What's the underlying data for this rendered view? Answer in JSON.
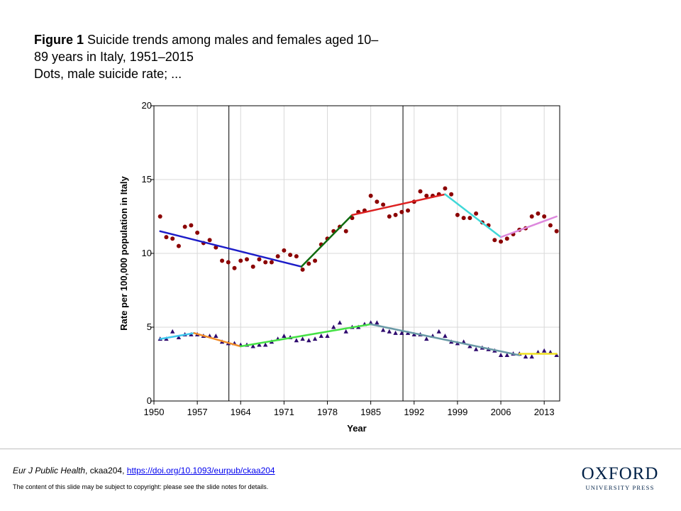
{
  "caption": {
    "label": "Figure 1",
    "line1": " Suicide trends among males and females aged 10–",
    "line2": "89 years in Italy, 1951–2015",
    "line3": "Dots, male suicide rate; ..."
  },
  "chart_data": {
    "type": "scatter",
    "xlabel": "Year",
    "ylabel": "Rate per 100,000 population in Italy",
    "xlim": [
      1950,
      2015.5
    ],
    "ylim": [
      0,
      20
    ],
    "x_ticks": [
      1950,
      1957,
      1964,
      1971,
      1978,
      1985,
      1992,
      1999,
      2006,
      2013
    ],
    "y_ticks": [
      0,
      5,
      10,
      15,
      20
    ],
    "grid": true,
    "vertical_lines": [
      1962.1,
      1990.2
    ],
    "series": [
      {
        "marker": "circle",
        "color": "#8b0000",
        "points": [
          [
            1951,
            12.5
          ],
          [
            1952,
            11.1
          ],
          [
            1953,
            11.0
          ],
          [
            1954,
            10.5
          ],
          [
            1955,
            11.8
          ],
          [
            1956,
            11.9
          ],
          [
            1957,
            11.4
          ],
          [
            1958,
            10.7
          ],
          [
            1959,
            10.9
          ],
          [
            1960,
            10.4
          ],
          [
            1961,
            9.5
          ],
          [
            1962,
            9.4
          ],
          [
            1963,
            9.0
          ],
          [
            1964,
            9.5
          ],
          [
            1965,
            9.6
          ],
          [
            1966,
            9.1
          ],
          [
            1967,
            9.6
          ],
          [
            1968,
            9.4
          ],
          [
            1969,
            9.4
          ],
          [
            1970,
            9.8
          ],
          [
            1971,
            10.2
          ],
          [
            1972,
            9.9
          ],
          [
            1973,
            9.8
          ],
          [
            1974,
            8.9
          ],
          [
            1975,
            9.3
          ],
          [
            1976,
            9.5
          ],
          [
            1977,
            10.6
          ],
          [
            1978,
            11.0
          ],
          [
            1979,
            11.5
          ],
          [
            1980,
            11.8
          ],
          [
            1981,
            11.5
          ],
          [
            1982,
            12.4
          ],
          [
            1983,
            12.8
          ],
          [
            1984,
            12.9
          ],
          [
            1985,
            13.9
          ],
          [
            1986,
            13.5
          ],
          [
            1987,
            13.3
          ],
          [
            1988,
            12.5
          ],
          [
            1989,
            12.6
          ],
          [
            1990,
            12.8
          ],
          [
            1991,
            12.9
          ],
          [
            1992,
            13.5
          ],
          [
            1993,
            14.2
          ],
          [
            1994,
            13.9
          ],
          [
            1995,
            13.9
          ],
          [
            1996,
            14.0
          ],
          [
            1997,
            14.4
          ],
          [
            1998,
            14.0
          ],
          [
            1999,
            12.6
          ],
          [
            2000,
            12.4
          ],
          [
            2001,
            12.4
          ],
          [
            2002,
            12.7
          ],
          [
            2003,
            12.1
          ],
          [
            2004,
            11.9
          ],
          [
            2005,
            10.9
          ],
          [
            2006,
            10.8
          ],
          [
            2007,
            11.0
          ],
          [
            2008,
            11.3
          ],
          [
            2009,
            11.6
          ],
          [
            2010,
            11.7
          ],
          [
            2011,
            12.5
          ],
          [
            2012,
            12.7
          ],
          [
            2013,
            12.5
          ],
          [
            2014,
            11.9
          ],
          [
            2015,
            11.5
          ]
        ]
      },
      {
        "marker": "triangle",
        "color": "#2e0a6e",
        "points": [
          [
            1951,
            4.2
          ],
          [
            1952,
            4.2
          ],
          [
            1953,
            4.7
          ],
          [
            1954,
            4.3
          ],
          [
            1955,
            4.5
          ],
          [
            1956,
            4.5
          ],
          [
            1957,
            4.5
          ],
          [
            1958,
            4.4
          ],
          [
            1959,
            4.4
          ],
          [
            1960,
            4.4
          ],
          [
            1961,
            4.0
          ],
          [
            1962,
            3.9
          ],
          [
            1963,
            3.9
          ],
          [
            1964,
            3.8
          ],
          [
            1965,
            3.8
          ],
          [
            1966,
            3.7
          ],
          [
            1967,
            3.8
          ],
          [
            1968,
            3.8
          ],
          [
            1969,
            4.0
          ],
          [
            1970,
            4.2
          ],
          [
            1971,
            4.4
          ],
          [
            1972,
            4.3
          ],
          [
            1973,
            4.1
          ],
          [
            1974,
            4.2
          ],
          [
            1975,
            4.1
          ],
          [
            1976,
            4.2
          ],
          [
            1977,
            4.4
          ],
          [
            1978,
            4.4
          ],
          [
            1979,
            5.0
          ],
          [
            1980,
            5.3
          ],
          [
            1981,
            4.7
          ],
          [
            1982,
            5.0
          ],
          [
            1983,
            5.0
          ],
          [
            1984,
            5.2
          ],
          [
            1985,
            5.3
          ],
          [
            1986,
            5.3
          ],
          [
            1987,
            4.8
          ],
          [
            1988,
            4.7
          ],
          [
            1989,
            4.6
          ],
          [
            1990,
            4.6
          ],
          [
            1991,
            4.6
          ],
          [
            1992,
            4.5
          ],
          [
            1993,
            4.5
          ],
          [
            1994,
            4.2
          ],
          [
            1995,
            4.4
          ],
          [
            1996,
            4.7
          ],
          [
            1997,
            4.4
          ],
          [
            1998,
            4.0
          ],
          [
            1999,
            3.9
          ],
          [
            2000,
            4.0
          ],
          [
            2001,
            3.7
          ],
          [
            2002,
            3.5
          ],
          [
            2003,
            3.6
          ],
          [
            2004,
            3.5
          ],
          [
            2005,
            3.4
          ],
          [
            2006,
            3.1
          ],
          [
            2007,
            3.1
          ],
          [
            2008,
            3.2
          ],
          [
            2009,
            3.2
          ],
          [
            2010,
            3.0
          ],
          [
            2011,
            3.0
          ],
          [
            2012,
            3.3
          ],
          [
            2013,
            3.4
          ],
          [
            2014,
            3.3
          ],
          [
            2015,
            3.1
          ]
        ]
      }
    ],
    "trend_segments": [
      {
        "color": "#1c1cc8",
        "x": [
          1951,
          1973.8
        ],
        "y": [
          11.5,
          9.1
        ]
      },
      {
        "color": "#0f6b0f",
        "x": [
          1973.8,
          1982
        ],
        "y": [
          9.1,
          12.6
        ]
      },
      {
        "color": "#dd2020",
        "x": [
          1982,
          1997
        ],
        "y": [
          12.6,
          14.0
        ]
      },
      {
        "color": "#40d8d8",
        "x": [
          1997,
          2006
        ],
        "y": [
          14.0,
          11.1
        ]
      },
      {
        "color": "#dd88dd",
        "x": [
          2006,
          2015
        ],
        "y": [
          11.1,
          12.5
        ]
      },
      {
        "color": "#3ec8ee",
        "x": [
          1951,
          1956.5
        ],
        "y": [
          4.2,
          4.6
        ]
      },
      {
        "color": "#f08c28",
        "x": [
          1956.5,
          1964
        ],
        "y": [
          4.6,
          3.7
        ]
      },
      {
        "color": "#44e044",
        "x": [
          1964,
          1985
        ],
        "y": [
          3.7,
          5.2
        ]
      },
      {
        "color": "#6a9aa6",
        "x": [
          1985,
          2009
        ],
        "y": [
          5.2,
          3.1
        ]
      },
      {
        "color": "#f0e020",
        "x": [
          2009,
          2015
        ],
        "y": [
          3.2,
          3.2
        ]
      }
    ]
  },
  "citation": {
    "journal": "Eur J Public Health",
    "article": ", ckaa204, ",
    "doi": "https://doi.org/10.1093/eurpub/ckaa204"
  },
  "copyright": "The content of this slide may be subject to copyright: please see the slide notes for details.",
  "logo": {
    "name": "OXFORD",
    "subtitle": "UNIVERSITY PRESS"
  }
}
